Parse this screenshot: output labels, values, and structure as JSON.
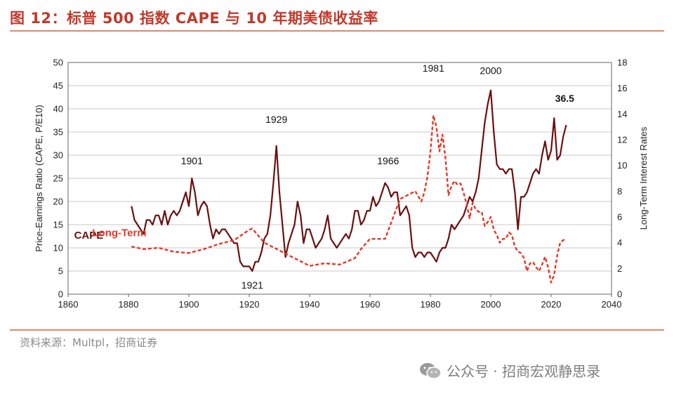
{
  "figure": {
    "title": "图 12：标普 500 指数 CAPE 与 10 年期美债收益率",
    "source": "资料来源：Multpl，招商证券",
    "watermark": "公众号 · 招商宏观静思录",
    "watermark_icon": "wechat-icon"
  },
  "chart_data": {
    "type": "line",
    "xlabel": "",
    "ylabel_left": "Price-Earnings Ratio (CAPE, P/E10)",
    "ylabel_right": "Long-Term Interest Rates",
    "xlim": [
      1860,
      2040
    ],
    "ylim_left": [
      0,
      50
    ],
    "ylim_right": [
      0,
      18
    ],
    "x_ticks": [
      1860,
      1880,
      1900,
      1920,
      1940,
      1960,
      1980,
      2000,
      2020,
      2040
    ],
    "y_ticks_left": [
      0,
      5,
      10,
      15,
      20,
      25,
      30,
      35,
      40,
      45,
      50
    ],
    "y_ticks_right": [
      0,
      2,
      4,
      6,
      8,
      10,
      12,
      14,
      16,
      18
    ],
    "grid": true,
    "annotations": [
      {
        "text": "1901",
        "x": 1901,
        "y": 28
      },
      {
        "text": "1929",
        "x": 1929,
        "y": 37
      },
      {
        "text": "1921",
        "x": 1921,
        "y": 1.2
      },
      {
        "text": "1966",
        "x": 1966,
        "y": 28
      },
      {
        "text": "1981",
        "x": 1981,
        "y": 48
      },
      {
        "text": "2000",
        "x": 2000,
        "y": 47.5
      },
      {
        "text": "36.5",
        "x": 2024.5,
        "y": 41.5
      }
    ],
    "series": [
      {
        "name": "CAPE",
        "axis": "left",
        "color": "#6B0F0F",
        "style": "solid",
        "label_pos": {
          "x": 1862,
          "y": 12
        },
        "x": [
          1881,
          1882,
          1883,
          1884,
          1885,
          1886,
          1887,
          1888,
          1889,
          1890,
          1891,
          1892,
          1893,
          1894,
          1895,
          1896,
          1897,
          1898,
          1899,
          1900,
          1901,
          1902,
          1903,
          1904,
          1905,
          1906,
          1907,
          1908,
          1909,
          1910,
          1911,
          1912,
          1913,
          1914,
          1915,
          1916,
          1917,
          1918,
          1919,
          1920,
          1921,
          1922,
          1923,
          1924,
          1925,
          1926,
          1927,
          1928,
          1929,
          1930,
          1931,
          1932,
          1933,
          1934,
          1935,
          1936,
          1937,
          1938,
          1939,
          1940,
          1941,
          1942,
          1943,
          1944,
          1945,
          1946,
          1947,
          1948,
          1949,
          1950,
          1951,
          1952,
          1953,
          1954,
          1955,
          1956,
          1957,
          1958,
          1959,
          1960,
          1961,
          1962,
          1963,
          1964,
          1965,
          1966,
          1967,
          1968,
          1969,
          1970,
          1971,
          1972,
          1973,
          1974,
          1975,
          1976,
          1977,
          1978,
          1979,
          1980,
          1981,
          1982,
          1983,
          1984,
          1985,
          1986,
          1987,
          1988,
          1989,
          1990,
          1991,
          1992,
          1993,
          1994,
          1995,
          1996,
          1997,
          1998,
          1999,
          2000,
          2001,
          2002,
          2003,
          2004,
          2005,
          2006,
          2007,
          2008,
          2009,
          2010,
          2011,
          2012,
          2013,
          2014,
          2015,
          2016,
          2017,
          2018,
          2019,
          2020,
          2021,
          2022,
          2023,
          2024,
          2025
        ],
        "values": [
          19,
          16,
          15,
          14,
          13,
          16,
          16,
          15,
          17,
          17,
          15,
          18,
          15,
          17,
          18,
          17,
          18,
          20,
          22,
          19,
          25,
          22,
          17,
          19,
          20,
          19,
          15,
          12,
          14,
          13,
          14,
          14,
          13,
          12,
          11,
          11,
          7,
          6,
          6,
          6,
          5,
          7,
          7,
          9,
          12,
          13,
          17,
          24,
          32,
          22,
          15,
          8,
          11,
          13,
          15,
          20,
          17,
          11,
          14,
          14,
          12,
          10,
          11,
          12,
          14,
          17,
          12,
          11,
          10,
          11,
          12,
          13,
          12,
          14,
          18,
          18,
          15,
          16,
          18,
          18,
          21,
          19,
          20,
          22,
          24,
          23,
          21,
          22,
          22,
          17,
          18,
          19,
          17,
          10,
          8,
          9,
          9,
          8,
          9,
          9,
          8,
          7,
          9,
          10,
          10,
          12,
          15,
          14,
          15,
          16,
          17,
          19,
          21,
          20,
          22,
          25,
          31,
          37,
          41,
          44,
          35,
          28,
          27,
          27,
          26,
          27,
          27,
          22,
          14,
          21,
          21,
          22,
          24,
          26,
          27,
          26,
          30,
          33,
          29,
          31,
          38,
          29,
          30,
          34,
          36.5
        ]
      },
      {
        "name": "Long-Term",
        "axis": "right",
        "color": "#E03A2A",
        "style": "dashed",
        "label_pos": {
          "x": 1868,
          "y": 4.5
        },
        "x": [
          1881,
          1885,
          1890,
          1895,
          1900,
          1905,
          1910,
          1915,
          1920,
          1921,
          1925,
          1930,
          1935,
          1940,
          1945,
          1950,
          1955,
          1957,
          1960,
          1965,
          1969,
          1970,
          1975,
          1977,
          1978,
          1979,
          1980,
          1981,
          1982,
          1983,
          1984,
          1985,
          1986,
          1987,
          1988,
          1989,
          1990,
          1991,
          1992,
          1993,
          1994,
          1995,
          1996,
          1997,
          1998,
          1999,
          2000,
          2001,
          2002,
          2003,
          2004,
          2005,
          2006,
          2007,
          2008,
          2009,
          2010,
          2011,
          2012,
          2013,
          2014,
          2015,
          2016,
          2017,
          2018,
          2019,
          2020,
          2021,
          2022,
          2023,
          2024,
          2025
        ],
        "values": [
          3.7,
          3.5,
          3.6,
          3.3,
          3.2,
          3.5,
          3.9,
          4.2,
          5.0,
          5.1,
          4.0,
          3.4,
          2.8,
          2.2,
          2.4,
          2.3,
          2.8,
          3.5,
          4.3,
          4.3,
          6.8,
          7.4,
          8.0,
          7.2,
          7.9,
          9.1,
          11.0,
          13.9,
          13.0,
          11.1,
          12.4,
          10.6,
          7.7,
          8.4,
          8.8,
          8.5,
          8.6,
          7.9,
          7.0,
          5.9,
          7.1,
          6.6,
          6.4,
          6.4,
          5.3,
          5.6,
          6.0,
          5.0,
          4.6,
          4.0,
          4.3,
          4.3,
          4.8,
          4.6,
          3.7,
          3.3,
          3.2,
          2.8,
          1.8,
          2.4,
          2.5,
          2.1,
          1.8,
          2.3,
          2.9,
          2.1,
          0.9,
          1.5,
          3.0,
          4.0,
          4.2,
          4.3
        ]
      }
    ]
  }
}
